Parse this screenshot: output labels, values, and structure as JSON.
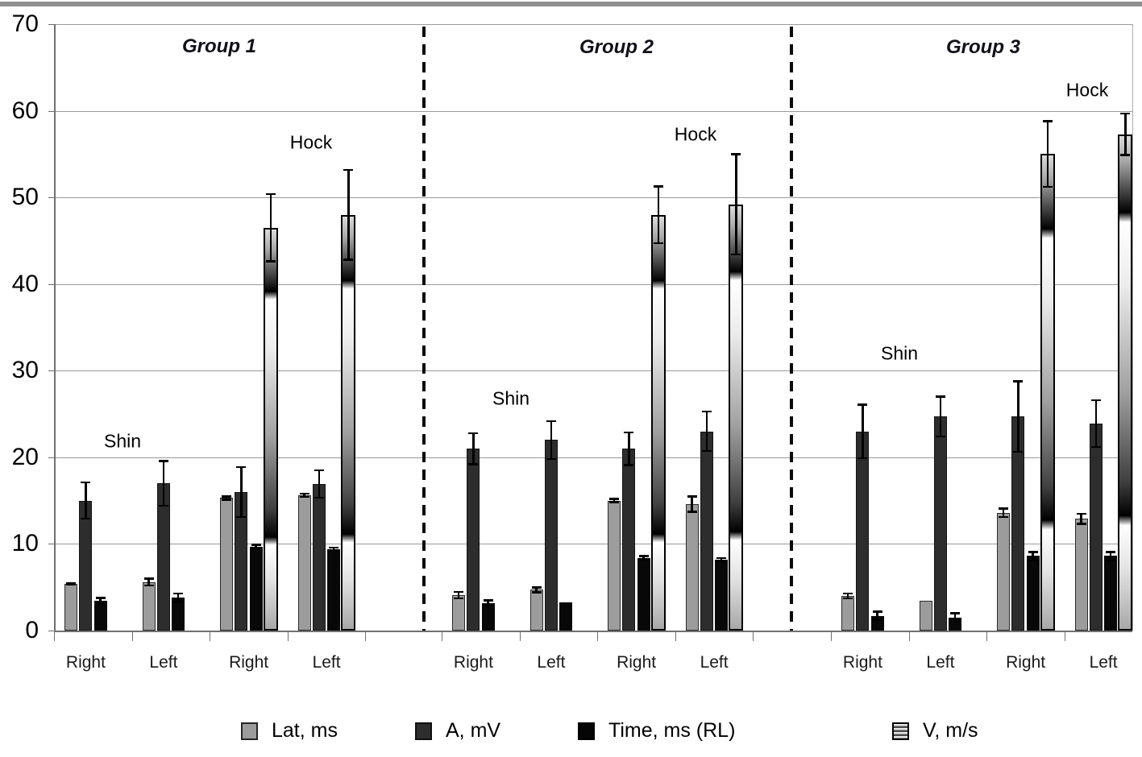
{
  "window": {
    "top_bar_color": "#8f8f8f",
    "background": "#ffffff"
  },
  "chart_data": {
    "type": "bar",
    "title": "",
    "xlabel": "",
    "ylabel": "",
    "ylim": [
      0,
      70
    ],
    "yticks": [
      0,
      10,
      20,
      30,
      40,
      50,
      60,
      70
    ],
    "grid": true,
    "legend_position": "bottom",
    "series_meta": [
      {
        "key": "lat",
        "label": "Lat, ms",
        "color": "#9c9c9c"
      },
      {
        "key": "a",
        "label": "A, mV",
        "color": "#2d2d2d"
      },
      {
        "key": "time",
        "label": "Time, ms (RL)",
        "color": "#080808"
      },
      {
        "key": "v",
        "label": "V, m/s",
        "color": "gradient-grayscale"
      }
    ],
    "groups": [
      {
        "label": "Group 1",
        "annotations": [
          {
            "text": "Shin"
          },
          {
            "text": "Hock"
          }
        ],
        "clusters": [
          {
            "x_label": "Right",
            "site": "Shin",
            "bars": [
              {
                "series": "lat",
                "value": 5.4,
                "err": 0.2
              },
              {
                "series": "a",
                "value": 15.0,
                "err": 2.2
              },
              {
                "series": "time",
                "value": 3.4,
                "err": 0.5
              }
            ]
          },
          {
            "x_label": "Left",
            "site": "Shin",
            "bars": [
              {
                "series": "lat",
                "value": 5.6,
                "err": 0.5
              },
              {
                "series": "a",
                "value": 17.0,
                "err": 2.7
              },
              {
                "series": "time",
                "value": 3.8,
                "err": 0.6
              }
            ]
          },
          {
            "x_label": "Right",
            "site": "Hock",
            "bars": [
              {
                "series": "lat",
                "value": 15.3,
                "err": 0.3
              },
              {
                "series": "a",
                "value": 16.0,
                "err": 3.0
              },
              {
                "series": "time",
                "value": 9.7,
                "err": 0.3
              },
              {
                "series": "v",
                "value": 46.5,
                "err": 4.0
              }
            ]
          },
          {
            "x_label": "Left",
            "site": "Hock",
            "bars": [
              {
                "series": "lat",
                "value": 15.6,
                "err": 0.3
              },
              {
                "series": "a",
                "value": 16.9,
                "err": 1.7
              },
              {
                "series": "time",
                "value": 9.4,
                "err": 0.3
              },
              {
                "series": "v",
                "value": 48.0,
                "err": 5.3
              }
            ]
          }
        ]
      },
      {
        "label": "Group 2",
        "annotations": [
          {
            "text": "Shin"
          },
          {
            "text": "Hock"
          }
        ],
        "clusters": [
          {
            "x_label": "Right",
            "site": "Shin",
            "bars": [
              {
                "series": "lat",
                "value": 4.1,
                "err": 0.5
              },
              {
                "series": "a",
                "value": 21.0,
                "err": 1.9
              },
              {
                "series": "time",
                "value": 3.2,
                "err": 0.4
              }
            ]
          },
          {
            "x_label": "Left",
            "site": "Shin",
            "bars": [
              {
                "series": "lat",
                "value": 4.7,
                "err": 0.4
              },
              {
                "series": "a",
                "value": 22.0,
                "err": 2.3
              },
              {
                "series": "time",
                "value": 3.3,
                "err": 0
              }
            ]
          },
          {
            "x_label": "Right",
            "site": "Hock",
            "bars": [
              {
                "series": "lat",
                "value": 15.0,
                "err": 0.3
              },
              {
                "series": "a",
                "value": 21.0,
                "err": 2.0
              },
              {
                "series": "time",
                "value": 8.4,
                "err": 0.3
              },
              {
                "series": "v",
                "value": 48.0,
                "err": 3.4
              }
            ]
          },
          {
            "x_label": "Left",
            "site": "Hock",
            "bars": [
              {
                "series": "lat",
                "value": 14.6,
                "err": 1.0
              },
              {
                "series": "a",
                "value": 23.0,
                "err": 2.4
              },
              {
                "series": "time",
                "value": 8.2,
                "err": 0.3
              },
              {
                "series": "v",
                "value": 49.2,
                "err": 5.9
              }
            ]
          }
        ]
      },
      {
        "label": "Group 3",
        "annotations": [
          {
            "text": "Shin"
          },
          {
            "text": "Hock"
          }
        ],
        "clusters": [
          {
            "x_label": "Right",
            "site": "Shin",
            "bars": [
              {
                "series": "lat",
                "value": 4.0,
                "err": 0.4
              },
              {
                "series": "a",
                "value": 23.0,
                "err": 3.2
              },
              {
                "series": "time",
                "value": 1.7,
                "err": 0.6
              }
            ]
          },
          {
            "x_label": "Left",
            "site": "Shin",
            "bars": [
              {
                "series": "lat",
                "value": 3.4,
                "err": 0
              },
              {
                "series": "a",
                "value": 24.7,
                "err": 2.4
              },
              {
                "series": "time",
                "value": 1.5,
                "err": 0.6
              }
            ]
          },
          {
            "x_label": "Right",
            "site": "Hock",
            "bars": [
              {
                "series": "lat",
                "value": 13.6,
                "err": 0.6
              },
              {
                "series": "a",
                "value": 24.7,
                "err": 4.2
              },
              {
                "series": "time",
                "value": 8.6,
                "err": 0.6
              },
              {
                "series": "v",
                "value": 55.0,
                "err": 3.9
              }
            ]
          },
          {
            "x_label": "Left",
            "site": "Hock",
            "bars": [
              {
                "series": "lat",
                "value": 12.9,
                "err": 0.7
              },
              {
                "series": "a",
                "value": 23.9,
                "err": 2.8
              },
              {
                "series": "time",
                "value": 8.6,
                "err": 0.6
              },
              {
                "series": "v",
                "value": 57.3,
                "err": 2.5
              }
            ]
          }
        ]
      }
    ]
  }
}
